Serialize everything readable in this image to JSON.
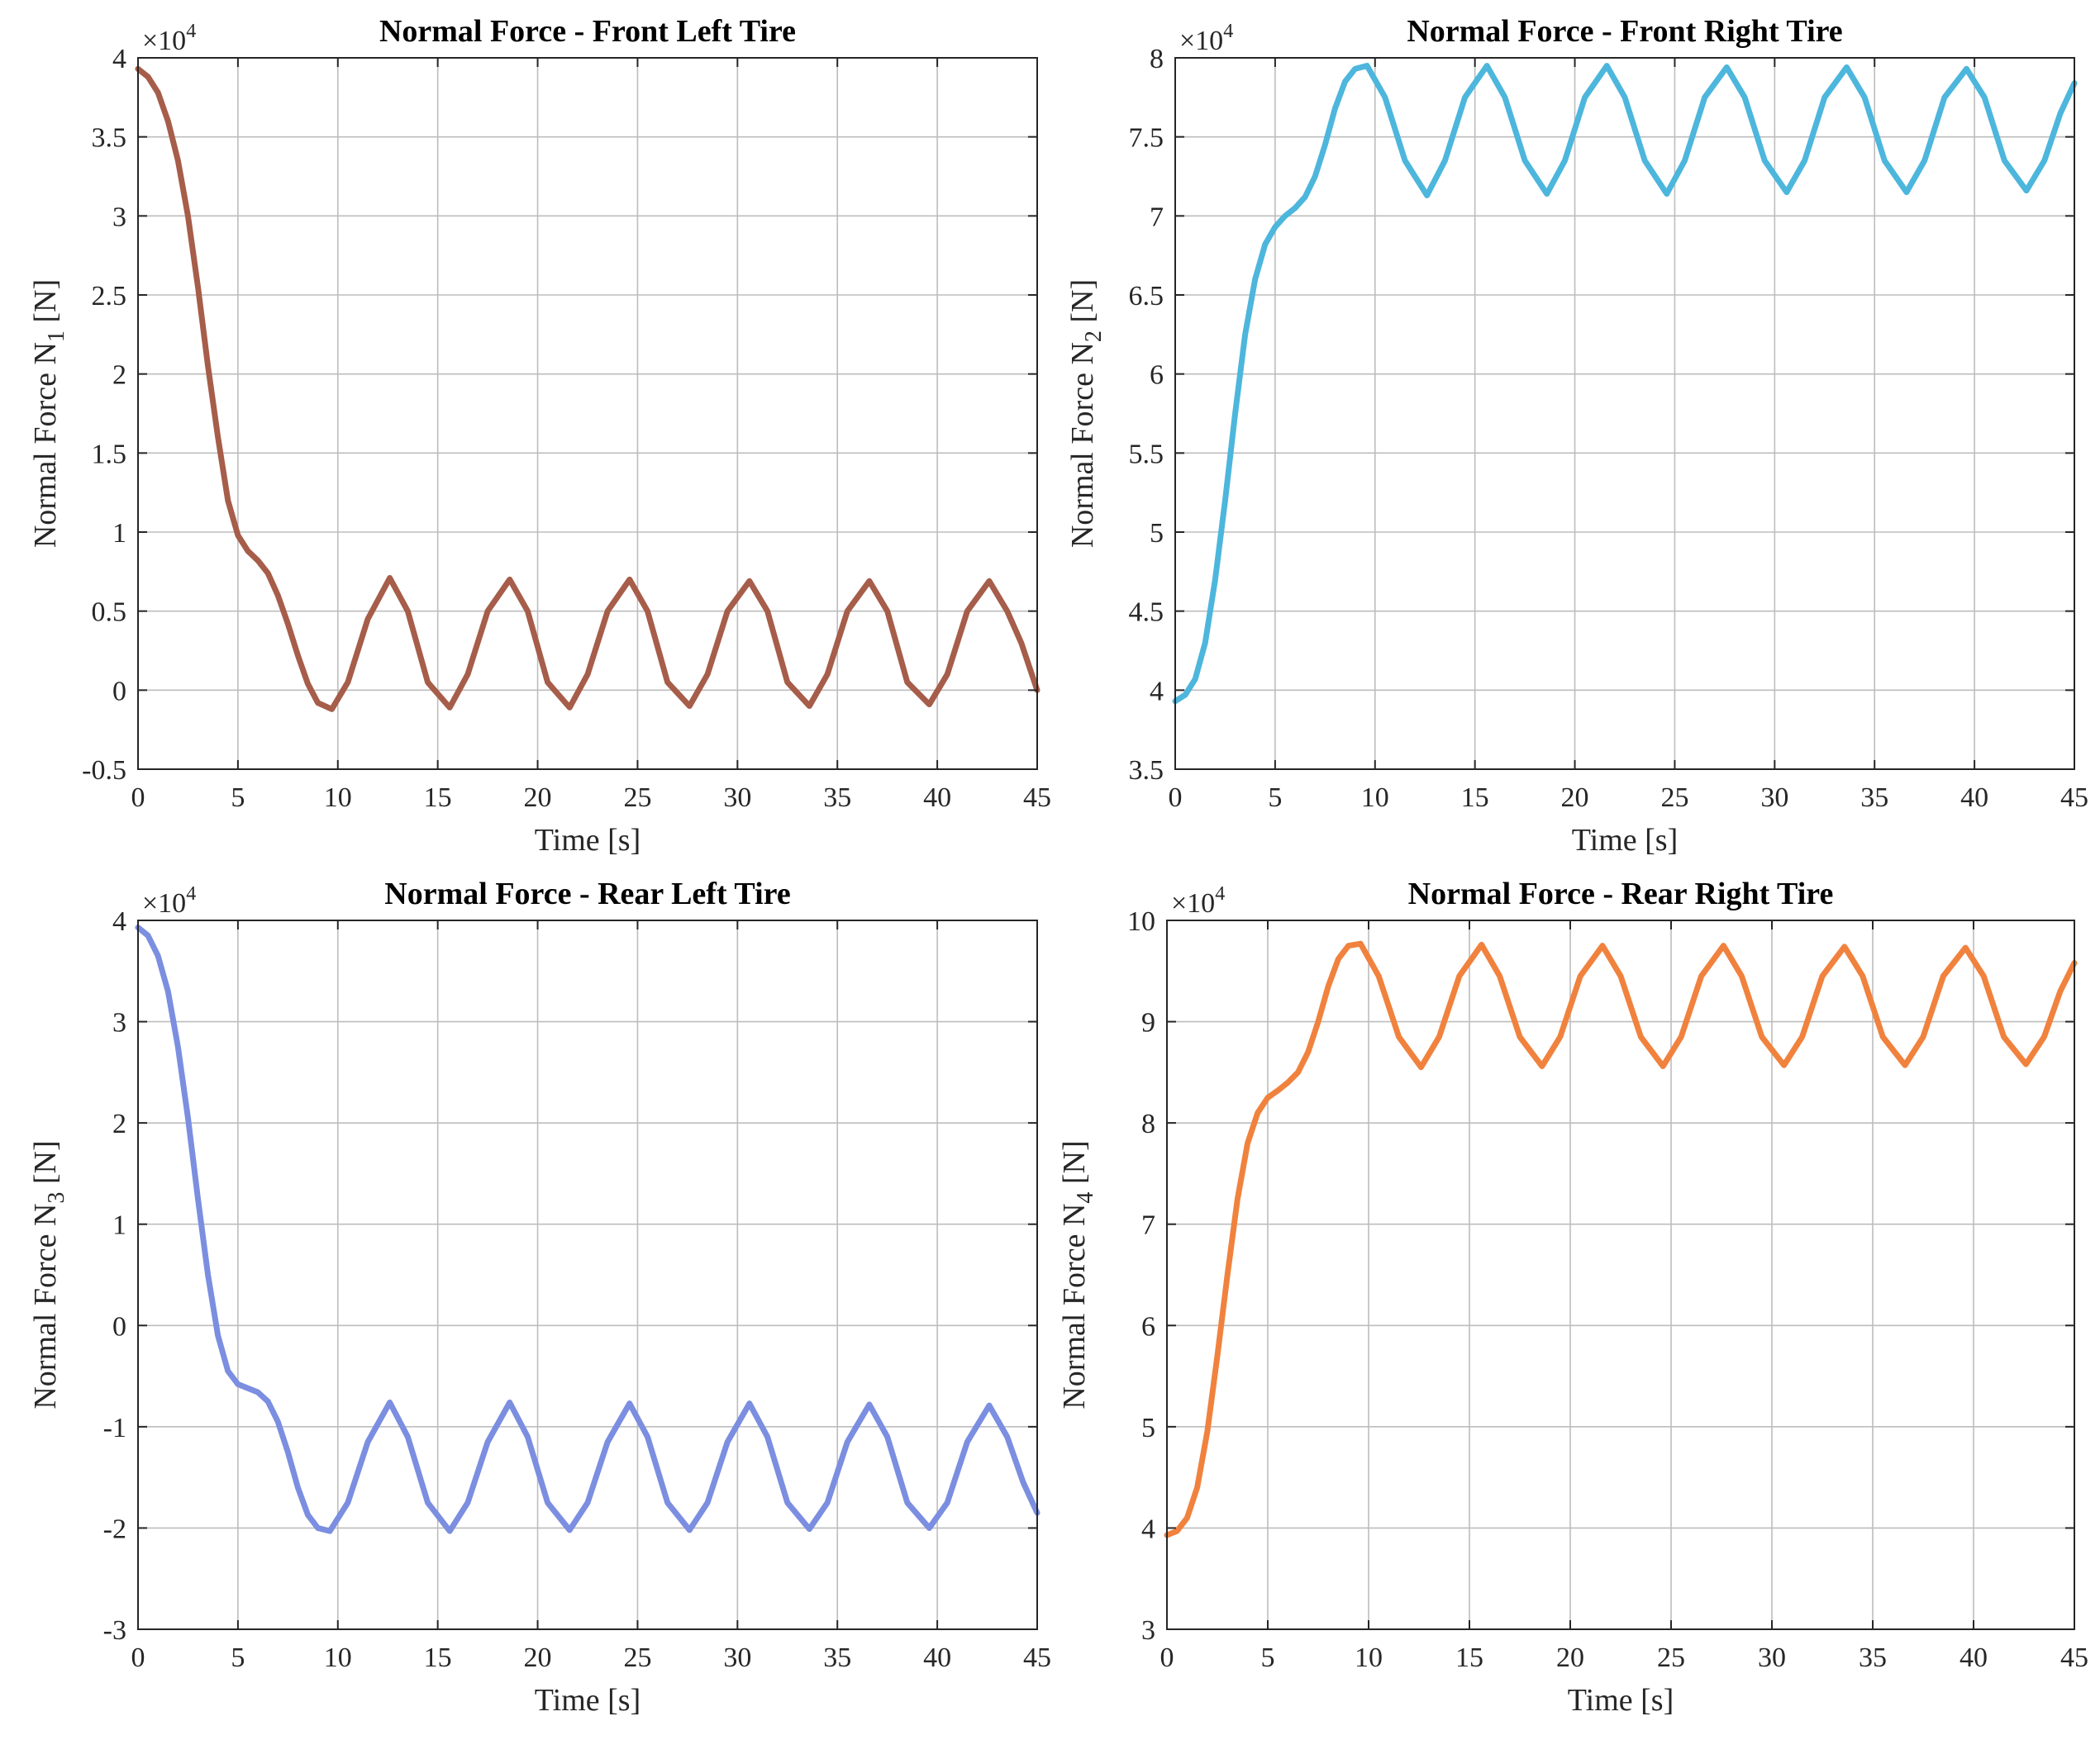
{
  "chart_data": [
    {
      "type": "line",
      "title": "Normal Force - Front Left Tire",
      "xlabel": "Time [s]",
      "ylabel": "Normal Force N",
      "ylabel_subscript": "1",
      "ylabel_unit": " [N]",
      "exponent_base": "×10",
      "exponent_power": "4",
      "xlim": [
        0,
        45
      ],
      "ylim": [
        -0.5,
        4
      ],
      "xticks": [
        0,
        5,
        10,
        15,
        20,
        25,
        30,
        35,
        40,
        45
      ],
      "yticks": [
        -0.5,
        0,
        0.5,
        1,
        1.5,
        2,
        2.5,
        3,
        3.5,
        4
      ],
      "ytick_labels": [
        "-0.5",
        "0",
        "0.5",
        "1",
        "1.5",
        "2",
        "2.5",
        "3",
        "3.5",
        "4"
      ],
      "grid": true,
      "color": "#a65d4a",
      "series": [
        {
          "name": "N1",
          "x": [
            0,
            0.5,
            1,
            1.5,
            2,
            2.5,
            3,
            3.5,
            4,
            4.5,
            5,
            5.5,
            6,
            6.5,
            7,
            7.5,
            8,
            8.5,
            9,
            9.7,
            10.5,
            11.5,
            12.6,
            13.5,
            14.5,
            15.6,
            16.5,
            17.5,
            18.6,
            19.5,
            20.5,
            21.6,
            22.5,
            23.5,
            24.6,
            25.5,
            26.5,
            27.6,
            28.5,
            29.5,
            30.6,
            31.5,
            32.5,
            33.6,
            34.5,
            35.5,
            36.6,
            37.5,
            38.5,
            39.6,
            40.5,
            41.5,
            42.6,
            43.5,
            44.2,
            45
          ],
          "y": [
            3.93,
            3.88,
            3.78,
            3.6,
            3.35,
            3.0,
            2.55,
            2.05,
            1.6,
            1.2,
            0.98,
            0.88,
            0.82,
            0.74,
            0.6,
            0.42,
            0.22,
            0.04,
            -0.08,
            -0.12,
            0.05,
            0.45,
            0.71,
            0.5,
            0.05,
            -0.11,
            0.1,
            0.5,
            0.7,
            0.5,
            0.05,
            -0.11,
            0.1,
            0.5,
            0.7,
            0.5,
            0.05,
            -0.1,
            0.1,
            0.5,
            0.69,
            0.5,
            0.05,
            -0.1,
            0.1,
            0.5,
            0.69,
            0.5,
            0.05,
            -0.09,
            0.1,
            0.5,
            0.69,
            0.5,
            0.3,
            0.0
          ]
        }
      ]
    },
    {
      "type": "line",
      "title": "Normal Force - Front Right Tire",
      "xlabel": "Time [s]",
      "ylabel": "Normal Force N",
      "ylabel_subscript": "2",
      "ylabel_unit": " [N]",
      "exponent_base": "×10",
      "exponent_power": "4",
      "xlim": [
        0,
        45
      ],
      "ylim": [
        3.5,
        8
      ],
      "xticks": [
        0,
        5,
        10,
        15,
        20,
        25,
        30,
        35,
        40,
        45
      ],
      "yticks": [
        3.5,
        4,
        4.5,
        5,
        5.5,
        6,
        6.5,
        7,
        7.5,
        8
      ],
      "ytick_labels": [
        "3.5",
        "4",
        "4.5",
        "5",
        "5.5",
        "6",
        "6.5",
        "7",
        "7.5",
        "8"
      ],
      "grid": true,
      "color": "#4db6dc",
      "series": [
        {
          "name": "N2",
          "x": [
            0,
            0.5,
            1,
            1.5,
            2,
            2.5,
            3,
            3.5,
            4,
            4.5,
            5,
            5.5,
            6,
            6.5,
            7,
            7.5,
            8,
            8.5,
            9,
            9.6,
            10.5,
            11.5,
            12.6,
            13.5,
            14.5,
            15.6,
            16.5,
            17.5,
            18.6,
            19.5,
            20.5,
            21.6,
            22.5,
            23.5,
            24.6,
            25.5,
            26.5,
            27.6,
            28.5,
            29.5,
            30.6,
            31.5,
            32.5,
            33.6,
            34.5,
            35.5,
            36.6,
            37.5,
            38.5,
            39.6,
            40.5,
            41.5,
            42.6,
            43.5,
            44.3,
            45
          ],
          "y": [
            3.93,
            3.97,
            4.07,
            4.3,
            4.7,
            5.2,
            5.75,
            6.25,
            6.6,
            6.82,
            6.93,
            7.0,
            7.05,
            7.12,
            7.25,
            7.45,
            7.68,
            7.85,
            7.93,
            7.95,
            7.75,
            7.35,
            7.13,
            7.35,
            7.75,
            7.95,
            7.75,
            7.35,
            7.14,
            7.35,
            7.75,
            7.95,
            7.75,
            7.35,
            7.14,
            7.35,
            7.75,
            7.94,
            7.75,
            7.35,
            7.15,
            7.35,
            7.75,
            7.94,
            7.75,
            7.35,
            7.15,
            7.35,
            7.75,
            7.93,
            7.75,
            7.35,
            7.16,
            7.35,
            7.65,
            7.84
          ]
        }
      ]
    },
    {
      "type": "line",
      "title": "Normal Force - Rear Left Tire",
      "xlabel": "Time [s]",
      "ylabel": "Normal Force N",
      "ylabel_subscript": "3",
      "ylabel_unit": " [N]",
      "exponent_base": "×10",
      "exponent_power": "4",
      "xlim": [
        0,
        45
      ],
      "ylim": [
        -3,
        4
      ],
      "xticks": [
        0,
        5,
        10,
        15,
        20,
        25,
        30,
        35,
        40,
        45
      ],
      "yticks": [
        -3,
        -2,
        -1,
        0,
        1,
        2,
        3,
        4
      ],
      "ytick_labels": [
        "-3",
        "-2",
        "-1",
        "0",
        "1",
        "2",
        "3",
        "4"
      ],
      "grid": true,
      "color": "#7b8ee0",
      "series": [
        {
          "name": "N3",
          "x": [
            0,
            0.5,
            1,
            1.5,
            2,
            2.5,
            3,
            3.5,
            4,
            4.5,
            5,
            5.5,
            6,
            6.5,
            7,
            7.5,
            8,
            8.5,
            9,
            9.6,
            10.5,
            11.5,
            12.6,
            13.5,
            14.5,
            15.6,
            16.5,
            17.5,
            18.6,
            19.5,
            20.5,
            21.6,
            22.5,
            23.5,
            24.6,
            25.5,
            26.5,
            27.6,
            28.5,
            29.5,
            30.6,
            31.5,
            32.5,
            33.6,
            34.5,
            35.5,
            36.6,
            37.5,
            38.5,
            39.6,
            40.5,
            41.5,
            42.6,
            43.5,
            44.3,
            45
          ],
          "y": [
            3.93,
            3.85,
            3.65,
            3.3,
            2.75,
            2.05,
            1.25,
            0.5,
            -0.1,
            -0.45,
            -0.58,
            -0.62,
            -0.66,
            -0.75,
            -0.95,
            -1.25,
            -1.6,
            -1.87,
            -2.0,
            -2.03,
            -1.75,
            -1.15,
            -0.76,
            -1.1,
            -1.75,
            -2.03,
            -1.75,
            -1.15,
            -0.76,
            -1.1,
            -1.75,
            -2.02,
            -1.75,
            -1.15,
            -0.77,
            -1.1,
            -1.75,
            -2.02,
            -1.75,
            -1.15,
            -0.77,
            -1.1,
            -1.75,
            -2.01,
            -1.75,
            -1.15,
            -0.78,
            -1.1,
            -1.75,
            -2.0,
            -1.75,
            -1.15,
            -0.79,
            -1.1,
            -1.55,
            -1.85
          ]
        }
      ]
    },
    {
      "type": "line",
      "title": "Normal Force - Rear Right Tire",
      "xlabel": "Time [s]",
      "ylabel": "Normal Force N",
      "ylabel_subscript": "4",
      "ylabel_unit": " [N]",
      "exponent_base": "×10",
      "exponent_power": "4",
      "xlim": [
        0,
        45
      ],
      "ylim": [
        3,
        10
      ],
      "xticks": [
        0,
        5,
        10,
        15,
        20,
        25,
        30,
        35,
        40,
        45
      ],
      "yticks": [
        3,
        4,
        5,
        6,
        7,
        8,
        9,
        10
      ],
      "ytick_labels": [
        "3",
        "4",
        "5",
        "6",
        "7",
        "8",
        "9",
        "10"
      ],
      "grid": true,
      "color": "#f0823e",
      "series": [
        {
          "name": "N4",
          "x": [
            0,
            0.5,
            1,
            1.5,
            2,
            2.5,
            3,
            3.5,
            4,
            4.5,
            5,
            5.5,
            6,
            6.5,
            7,
            7.5,
            8,
            8.5,
            9,
            9.6,
            10.5,
            11.5,
            12.6,
            13.5,
            14.5,
            15.6,
            16.5,
            17.5,
            18.6,
            19.5,
            20.5,
            21.6,
            22.5,
            23.5,
            24.6,
            25.5,
            26.5,
            27.6,
            28.5,
            29.5,
            30.6,
            31.5,
            32.5,
            33.6,
            34.5,
            35.5,
            36.6,
            37.5,
            38.5,
            39.6,
            40.5,
            41.5,
            42.6,
            43.5,
            44.3,
            45
          ],
          "y": [
            3.93,
            3.97,
            4.1,
            4.4,
            4.95,
            5.7,
            6.5,
            7.25,
            7.8,
            8.1,
            8.25,
            8.32,
            8.4,
            8.5,
            8.7,
            9.0,
            9.35,
            9.62,
            9.75,
            9.77,
            9.45,
            8.85,
            8.55,
            8.85,
            9.45,
            9.76,
            9.45,
            8.85,
            8.56,
            8.85,
            9.45,
            9.75,
            9.45,
            8.85,
            8.56,
            8.85,
            9.45,
            9.75,
            9.45,
            8.85,
            8.57,
            8.85,
            9.45,
            9.74,
            9.45,
            8.85,
            8.57,
            8.85,
            9.45,
            9.73,
            9.45,
            8.85,
            8.58,
            8.85,
            9.3,
            9.58
          ]
        }
      ]
    }
  ]
}
